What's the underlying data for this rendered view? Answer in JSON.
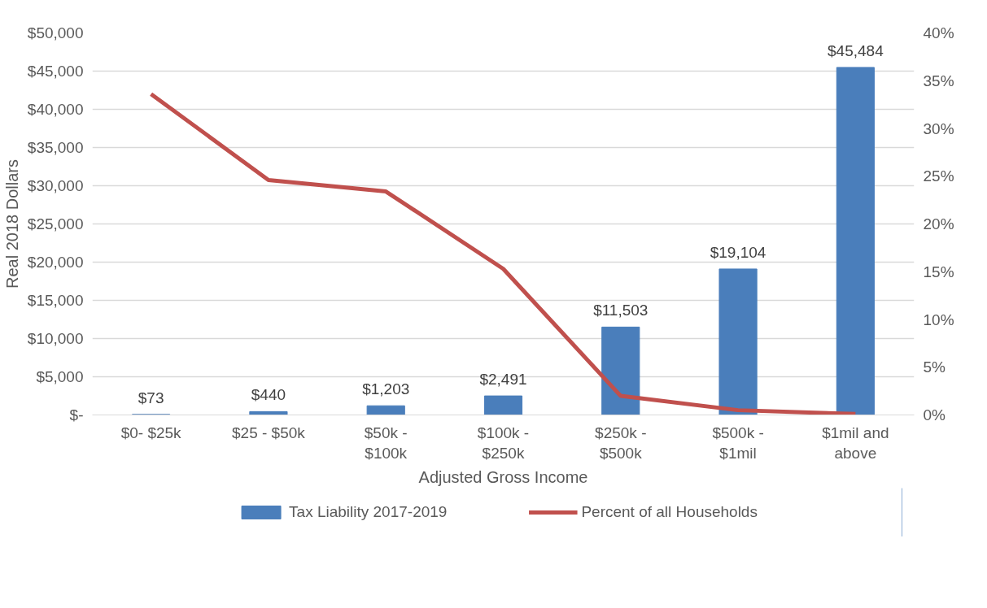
{
  "chart_data": {
    "type": "bar",
    "xlabel": "Adjusted Gross Income",
    "ylabel": "Real 2018 Dollars",
    "categories": [
      "$0- $25k",
      "$25 - $50k",
      "$50k - $100k",
      "$100k - $250k",
      "$250k - $500k",
      "$500k - $1mil",
      "$1mil and above"
    ],
    "series": [
      {
        "name": "Tax Liability 2017-2019",
        "type": "bar",
        "color": "#4a7ebb",
        "values": [
          73,
          440,
          1203,
          2491,
          11503,
          19104,
          45484
        ],
        "value_labels": [
          "$73",
          "$440",
          "$1,203",
          "$2,491",
          "$11,503",
          "$19,104",
          "$45,484"
        ]
      },
      {
        "name": "Percent of all Households",
        "type": "line",
        "axis": "y2",
        "color": "#c0504d",
        "values": [
          33.6,
          24.6,
          23.4,
          15.3,
          2.0,
          0.5,
          0.1
        ]
      }
    ],
    "ylim": [
      0,
      50000
    ],
    "yticks": [
      {
        "value": 0,
        "label": "$-"
      },
      {
        "value": 5000,
        "label": "$5,000"
      },
      {
        "value": 10000,
        "label": "$10,000"
      },
      {
        "value": 15000,
        "label": "$15,000"
      },
      {
        "value": 20000,
        "label": "$20,000"
      },
      {
        "value": 25000,
        "label": "$25,000"
      },
      {
        "value": 30000,
        "label": "$30,000"
      },
      {
        "value": 35000,
        "label": "$35,000"
      },
      {
        "value": 40000,
        "label": "$40,000"
      },
      {
        "value": 45000,
        "label": "$45,000"
      },
      {
        "value": 50000,
        "label": "$50,000"
      }
    ],
    "y2lim": [
      0,
      40
    ],
    "y2ticks": [
      {
        "value": 0,
        "label": "0%"
      },
      {
        "value": 5,
        "label": "5%"
      },
      {
        "value": 10,
        "label": "10%"
      },
      {
        "value": 15,
        "label": "15%"
      },
      {
        "value": 20,
        "label": "20%"
      },
      {
        "value": 25,
        "label": "25%"
      },
      {
        "value": 30,
        "label": "30%"
      },
      {
        "value": 35,
        "label": "35%"
      },
      {
        "value": 40,
        "label": "40%"
      }
    ],
    "grid": "y",
    "legend": "bottom",
    "marker": "none",
    "line_style": "solid"
  }
}
